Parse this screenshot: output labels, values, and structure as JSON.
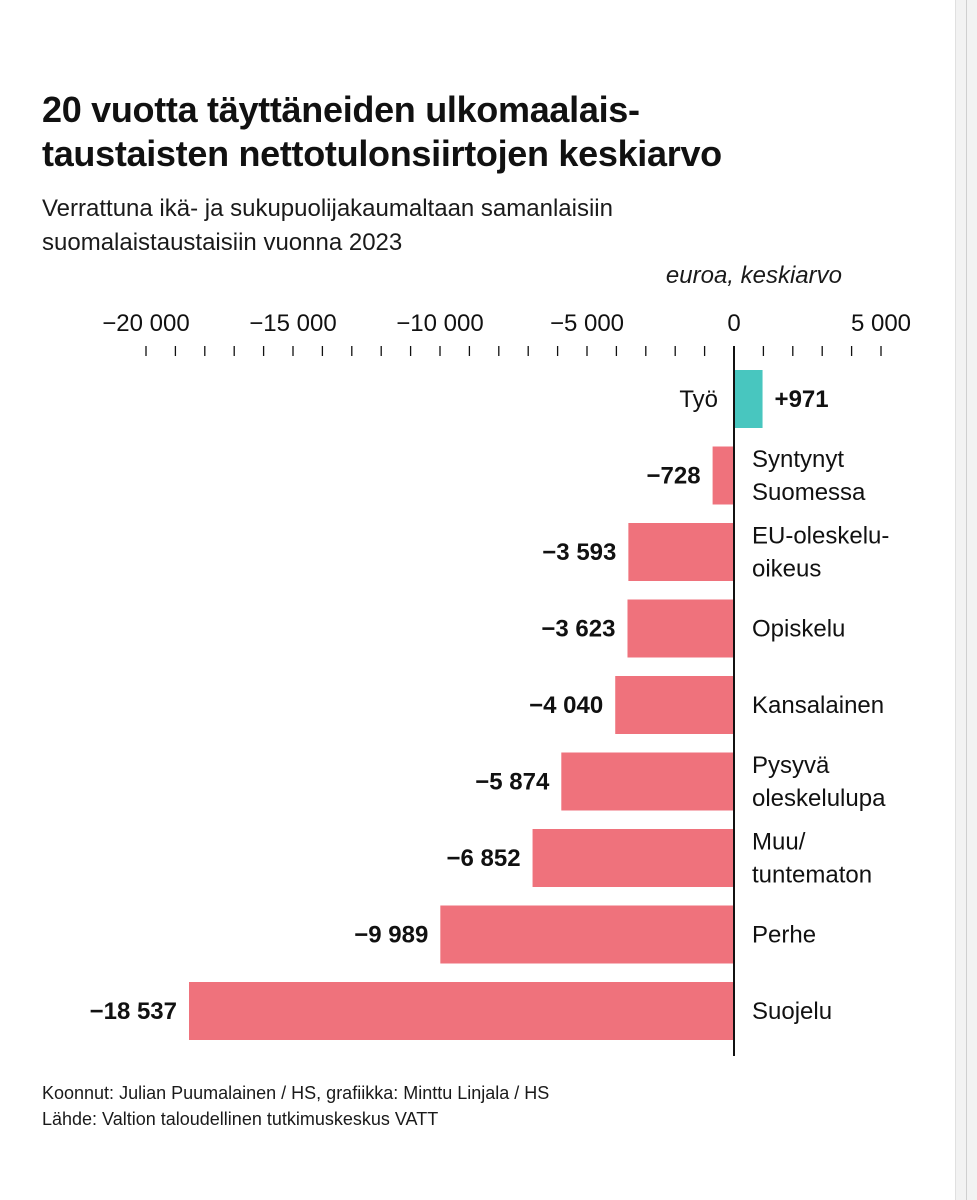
{
  "title_line1": "20 vuotta täyttäneiden ulkomaalais-",
  "title_line2": "taustaisten nettotulonsiirtojen keskiarvo",
  "subtitle_line1": "Verrattuna ikä- ja sukupuolijakaumaltaan samanlaisiin",
  "subtitle_line2": "suomalaistaustaisiin vuonna 2023",
  "unit_label": "euroa, keskiarvo",
  "credits_line1": "Koonnut: Julian Puumalainen / HS, grafiikka: Minttu Linjala / HS",
  "credits_line2": "Lähde: Valtion taloudellinen tutkimuskeskus VATT",
  "colors": {
    "positive": "#48c6bf",
    "negative": "#ef727c",
    "axis": "#111111",
    "text": "#111111"
  },
  "chart_data": {
    "type": "bar",
    "orientation": "horizontal",
    "xlim": [
      -20000,
      5000
    ],
    "ticks": [
      -20000,
      -15000,
      -10000,
      -5000,
      0,
      5000
    ],
    "tick_labels": [
      "−20 000",
      "−15 000",
      "−10 000",
      "−5 000",
      "0",
      "5 000"
    ],
    "grid": false,
    "categories": [
      [
        "Työ"
      ],
      [
        "Syntynyt",
        "Suomessa"
      ],
      [
        "EU-oleskelu-",
        "oikeus"
      ],
      [
        "Opiskelu"
      ],
      [
        "Kansalainen"
      ],
      [
        "Pysyvä",
        "oleskelulupa"
      ],
      [
        "Muu/",
        "tuntematon"
      ],
      [
        "Perhe"
      ],
      [
        "Suojelu"
      ]
    ],
    "values": [
      971,
      -728,
      -3593,
      -3623,
      -4040,
      -5874,
      -6852,
      -9989,
      -18537
    ],
    "value_labels": [
      "+971",
      "−728",
      "−3 593",
      "−3 623",
      "−4 040",
      "−5 874",
      "−6 852",
      "−9 989",
      "−18 537"
    ]
  }
}
